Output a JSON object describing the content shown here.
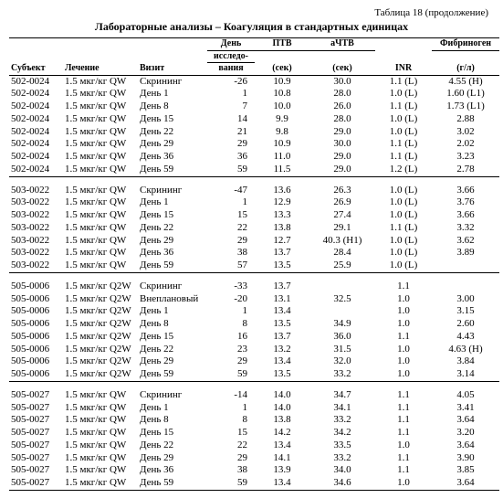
{
  "table_label": "Таблица 18  (продолжение)",
  "title": "Лабораторные анализы – Коагуляция в стандартных единицах",
  "headers": {
    "subject": "Субъект",
    "treatment": "Лечение",
    "visit": "Визит",
    "day_l1": "День",
    "day_l2": "исследо-",
    "day_l3": "вания",
    "ptv_l1": "ПТВ",
    "ptv_l2": "(сек)",
    "achtv_l1": "аЧТВ",
    "achtv_l2": "(сек)",
    "inr": "INR",
    "fib_l1": "Фибриноген",
    "fib_l2": "(г/л)"
  },
  "groups": [
    {
      "rows": [
        {
          "s": "502-0024",
          "t": "1.5 мкг/кг QW",
          "v": "Скрининг",
          "d": "-26",
          "ptv": "10.9",
          "a": "30.0",
          "inr": "1.1 (L)",
          "f": "4.55 (H)"
        },
        {
          "s": "502-0024",
          "t": "1.5 мкг/кг QW",
          "v": "День  1",
          "d": "1",
          "ptv": "10.8",
          "a": "28.0",
          "inr": "1.0 (L)",
          "f": "1.60 (L1)"
        },
        {
          "s": "502-0024",
          "t": "1.5 мкг/кг QW",
          "v": "День  8",
          "d": "7",
          "ptv": "10.0",
          "a": "26.0",
          "inr": "1.1 (L)",
          "f": "1.73 (L1)"
        },
        {
          "s": "502-0024",
          "t": "1.5 мкг/кг QW",
          "v": "День  15",
          "d": "14",
          "ptv": "9.9",
          "a": "28.0",
          "inr": "1.0 (L)",
          "f": "2.88"
        },
        {
          "s": "502-0024",
          "t": "1.5 мкг/кг QW",
          "v": "День  22",
          "d": "21",
          "ptv": "9.8",
          "a": "29.0",
          "inr": "1.0 (L)",
          "f": "3.02"
        },
        {
          "s": "502-0024",
          "t": "1.5 мкг/кг QW",
          "v": "День  29",
          "d": "29",
          "ptv": "10.9",
          "a": "30.0",
          "inr": "1.1 (L)",
          "f": "2.02"
        },
        {
          "s": "502-0024",
          "t": "1.5 мкг/кг QW",
          "v": "День  36",
          "d": "36",
          "ptv": "11.0",
          "a": "29.0",
          "inr": "1.1 (L)",
          "f": "3.23"
        },
        {
          "s": "502-0024",
          "t": "1.5 мкг/кг QW",
          "v": "День  59",
          "d": "59",
          "ptv": "11.5",
          "a": "29.0",
          "inr": "1.2 (L)",
          "f": "2.78"
        }
      ]
    },
    {
      "rows": [
        {
          "s": "503-0022",
          "t": "1.5 мкг/кг QW",
          "v": "Скрининг",
          "d": "-47",
          "ptv": "13.6",
          "a": "26.3",
          "inr": "1.0 (L)",
          "f": "3.66"
        },
        {
          "s": "503-0022",
          "t": "1.5 мкг/кг QW",
          "v": "День  1",
          "d": "1",
          "ptv": "12.9",
          "a": "26.9",
          "inr": "1.0 (L)",
          "f": "3.76"
        },
        {
          "s": "503-0022",
          "t": "1.5 мкг/кг QW",
          "v": "День  15",
          "d": "15",
          "ptv": "13.3",
          "a": "27.4",
          "inr": "1.0 (L)",
          "f": "3.66"
        },
        {
          "s": "503-0022",
          "t": "1.5 мкг/кг QW",
          "v": "День  22",
          "d": "22",
          "ptv": "13.8",
          "a": "29.1",
          "inr": "1.1 (L)",
          "f": "3.32"
        },
        {
          "s": "503-0022",
          "t": "1.5 мкг/кг QW",
          "v": "День  29",
          "d": "29",
          "ptv": "12.7",
          "a": "40.3 (H1)",
          "inr": "1.0 (L)",
          "f": "3.62"
        },
        {
          "s": "503-0022",
          "t": "1.5 мкг/кг QW",
          "v": "День  36",
          "d": "38",
          "ptv": "13.7",
          "a": "28.4",
          "inr": "1.0 (L)",
          "f": "3.89"
        },
        {
          "s": "503-0022",
          "t": "1.5 мкг/кг QW",
          "v": "День  59",
          "d": "57",
          "ptv": "13.5",
          "a": "25.9",
          "inr": "1.0 (L)",
          "f": ""
        }
      ]
    },
    {
      "rows": [
        {
          "s": "505-0006",
          "t": "1.5 мкг/кг Q2W",
          "v": "Скрининг",
          "d": "-33",
          "ptv": "13.7",
          "a": "",
          "inr": "1.1",
          "f": ""
        },
        {
          "s": "505-0006",
          "t": "1.5 мкг/кг Q2W",
          "v": "Внеплановый",
          "d": "-20",
          "ptv": "13.1",
          "a": "32.5",
          "inr": "1.0",
          "f": "3.00"
        },
        {
          "s": "505-0006",
          "t": "1.5 мкг/кг Q2W",
          "v": "День  1",
          "d": "1",
          "ptv": "13.4",
          "a": "",
          "inr": "1.0",
          "f": "3.15"
        },
        {
          "s": "505-0006",
          "t": "1.5 мкг/кг Q2W",
          "v": "День  8",
          "d": "8",
          "ptv": "13.5",
          "a": "34.9",
          "inr": "1.0",
          "f": "2.60"
        },
        {
          "s": "505-0006",
          "t": "1.5 мкг/кг Q2W",
          "v": "День  15",
          "d": "16",
          "ptv": "13.7",
          "a": "36.0",
          "inr": "1.1",
          "f": "4.43"
        },
        {
          "s": "505-0006",
          "t": "1.5 мкг/кг Q2W",
          "v": "День  22",
          "d": "23",
          "ptv": "13.2",
          "a": "31.5",
          "inr": "1.0",
          "f": "4.63 (H)"
        },
        {
          "s": "505-0006",
          "t": "1.5 мкг/кг Q2W",
          "v": "День  29",
          "d": "29",
          "ptv": "13.4",
          "a": "32.0",
          "inr": "1.0",
          "f": "3.84"
        },
        {
          "s": "505-0006",
          "t": "1.5 мкг/кг Q2W",
          "v": "День  59",
          "d": "59",
          "ptv": "13.5",
          "a": "33.2",
          "inr": "1.0",
          "f": "3.14"
        }
      ]
    },
    {
      "rows": [
        {
          "s": "505-0027",
          "t": "1.5 мкг/кг QW",
          "v": "Скрининг",
          "d": "-14",
          "ptv": "14.0",
          "a": "34.7",
          "inr": "1.1",
          "f": "4.05"
        },
        {
          "s": "505-0027",
          "t": "1.5 мкг/кг QW",
          "v": "День  1",
          "d": "1",
          "ptv": "14.0",
          "a": "34.1",
          "inr": "1.1",
          "f": "3.41"
        },
        {
          "s": "505-0027",
          "t": "1.5 мкг/кг QW",
          "v": "День  8",
          "d": "8",
          "ptv": "13.8",
          "a": "33.2",
          "inr": "1.1",
          "f": "3.64"
        },
        {
          "s": "505-0027",
          "t": "1.5 мкг/кг QW",
          "v": "День  15",
          "d": "15",
          "ptv": "14.2",
          "a": "34.2",
          "inr": "1.1",
          "f": "3.20"
        },
        {
          "s": "505-0027",
          "t": "1.5 мкг/кг QW",
          "v": "День  22",
          "d": "22",
          "ptv": "13.4",
          "a": "33.5",
          "inr": "1.0",
          "f": "3.64"
        },
        {
          "s": "505-0027",
          "t": "1.5 мкг/кг QW",
          "v": "День  29",
          "d": "29",
          "ptv": "14.1",
          "a": "33.2",
          "inr": "1.1",
          "f": "3.90"
        },
        {
          "s": "505-0027",
          "t": "1.5 мкг/кг QW",
          "v": "День  36",
          "d": "38",
          "ptv": "13.9",
          "a": "34.0",
          "inr": "1.1",
          "f": "3.85"
        },
        {
          "s": "505-0027",
          "t": "1.5 мкг/кг QW",
          "v": "День  59",
          "d": "59",
          "ptv": "13.4",
          "a": "34.6",
          "inr": "1.0",
          "f": "3.64"
        }
      ]
    }
  ]
}
